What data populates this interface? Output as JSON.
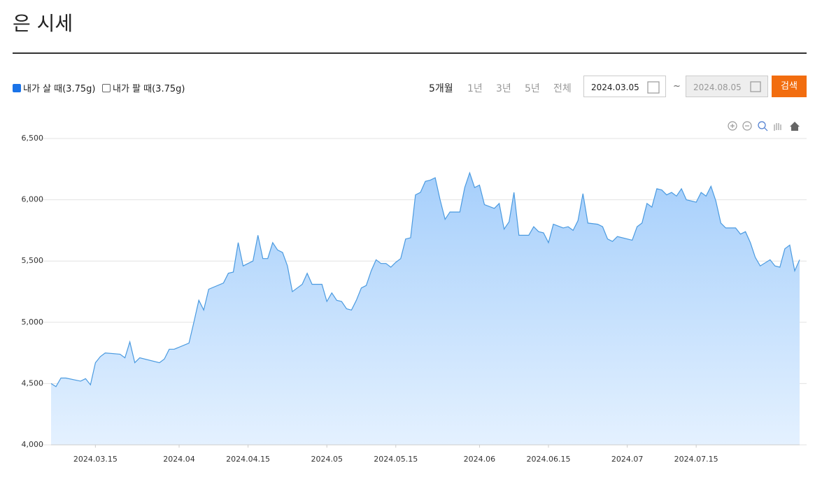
{
  "header": {
    "title": "은 시세"
  },
  "controls": {
    "buy_label": "내가 살 때(3.75g)",
    "sell_label": "내가 팔 때(3.75g)",
    "periods": [
      "5개월",
      "1년",
      "3년",
      "5년",
      "전체"
    ],
    "start_date": "2024.03.05",
    "separator": "~",
    "end_date": "2024.08.05",
    "search": "검색"
  },
  "chart_data": {
    "type": "area",
    "color": "#4a9ae0",
    "grid": true,
    "xlim": [
      "2024.03.06",
      "2024.08.05"
    ],
    "xticks": [
      "2024.03.15",
      {
        "value": "2024.04.01",
        "label": "2024.04"
      },
      "2024.04.15",
      {
        "value": "2024.05.01",
        "label": "2024.05"
      },
      "2024.05.15",
      {
        "value": "2024.06.01",
        "label": "2024.06"
      },
      "2024.06.15",
      {
        "value": "2024.07.01",
        "label": "2024.07"
      },
      "2024.07.15"
    ],
    "ylim": [
      4000,
      6500
    ],
    "yticks": [
      {
        "value": 4000,
        "label": "4,000"
      },
      {
        "value": 4500,
        "label": "4,500"
      },
      {
        "value": 5000,
        "label": "5,000"
      },
      {
        "value": 5500,
        "label": "5,500"
      },
      {
        "value": 6000,
        "label": "6,000"
      },
      {
        "value": 6500,
        "label": "6,500"
      }
    ],
    "x": [
      "2024.03.06",
      "2024.03.07",
      "2024.03.08",
      "2024.03.09",
      "2024.03.12",
      "2024.03.13",
      "2024.03.14",
      "2024.03.15",
      "2024.03.16",
      "2024.03.17",
      "2024.03.20",
      "2024.03.21",
      "2024.03.22",
      "2024.03.23",
      "2024.03.24",
      "2024.03.28",
      "2024.03.29",
      "2024.03.30",
      "2024.03.31",
      "2024.04.03",
      "2024.04.04",
      "2024.04.05",
      "2024.04.06",
      "2024.04.07",
      "2024.04.10",
      "2024.04.11",
      "2024.04.12",
      "2024.04.13",
      "2024.04.14",
      "2024.04.16",
      "2024.04.17",
      "2024.04.18",
      "2024.04.19",
      "2024.04.20",
      "2024.04.21",
      "2024.04.22",
      "2024.04.23",
      "2024.04.24",
      "2024.04.25",
      "2024.04.26",
      "2024.04.27",
      "2024.04.28",
      "2024.04.30",
      "2024.05.01",
      "2024.05.02",
      "2024.05.03",
      "2024.05.04",
      "2024.05.05",
      "2024.05.06",
      "2024.05.07",
      "2024.05.08",
      "2024.05.09",
      "2024.05.10",
      "2024.05.11",
      "2024.05.12",
      "2024.05.13",
      "2024.05.14",
      "2024.05.15",
      "2024.05.16",
      "2024.05.17",
      "2024.05.18",
      "2024.05.19",
      "2024.05.20",
      "2024.05.21",
      "2024.05.22",
      "2024.05.23",
      "2024.05.24",
      "2024.05.25",
      "2024.05.26",
      "2024.05.28",
      "2024.05.29",
      "2024.05.30",
      "2024.05.31",
      "2024.06.01",
      "2024.06.02",
      "2024.06.04",
      "2024.06.05",
      "2024.06.06",
      "2024.06.07",
      "2024.06.08",
      "2024.06.09",
      "2024.06.11",
      "2024.06.12",
      "2024.06.13",
      "2024.06.14",
      "2024.06.15",
      "2024.06.16",
      "2024.06.18",
      "2024.06.19",
      "2024.06.20",
      "2024.06.21",
      "2024.06.22",
      "2024.06.23",
      "2024.06.25",
      "2024.06.26",
      "2024.06.27",
      "2024.06.28",
      "2024.06.29",
      "2024.07.02",
      "2024.07.03",
      "2024.07.04",
      "2024.07.05",
      "2024.07.06",
      "2024.07.07",
      "2024.07.08",
      "2024.07.09",
      "2024.07.10",
      "2024.07.11",
      "2024.07.12",
      "2024.07.13",
      "2024.07.15",
      "2024.07.16",
      "2024.07.17",
      "2024.07.18",
      "2024.07.19",
      "2024.07.20",
      "2024.07.21",
      "2024.07.23",
      "2024.07.24",
      "2024.07.25",
      "2024.07.26",
      "2024.07.27",
      "2024.07.28",
      "2024.07.30",
      "2024.07.31",
      "2024.08.01",
      "2024.08.02",
      "2024.08.03",
      "2024.08.04",
      "2024.08.05"
    ],
    "values": [
      4500,
      4475,
      4545,
      4545,
      4520,
      4540,
      4490,
      4670,
      4720,
      4750,
      4740,
      4710,
      4840,
      4670,
      4710,
      4670,
      4700,
      4780,
      4780,
      4830,
      5000,
      5180,
      5100,
      5270,
      5320,
      5400,
      5410,
      5650,
      5460,
      5500,
      5710,
      5520,
      5520,
      5650,
      5590,
      5570,
      5460,
      5250,
      5280,
      5310,
      5400,
      5310,
      5310,
      5170,
      5240,
      5180,
      5170,
      5110,
      5100,
      5180,
      5280,
      5300,
      5420,
      5510,
      5480,
      5480,
      5450,
      5490,
      5520,
      5680,
      5690,
      6040,
      6060,
      6150,
      6160,
      6180,
      6000,
      5840,
      5900,
      5900,
      6100,
      6220,
      6100,
      6120,
      5960,
      5930,
      5970,
      5760,
      5820,
      6060,
      5710,
      5710,
      5780,
      5740,
      5730,
      5650,
      5800,
      5770,
      5780,
      5750,
      5830,
      6050,
      5810,
      5800,
      5780,
      5680,
      5660,
      5700,
      5670,
      5780,
      5810,
      5970,
      5940,
      6090,
      6080,
      6040,
      6060,
      6030,
      6090,
      6000,
      5980,
      6060,
      6030,
      6110,
      5990,
      5810,
      5770,
      5770,
      5720,
      5740,
      5650,
      5530,
      5460,
      5510,
      5460,
      5450,
      5600,
      5630,
      5420,
      5510
    ]
  }
}
